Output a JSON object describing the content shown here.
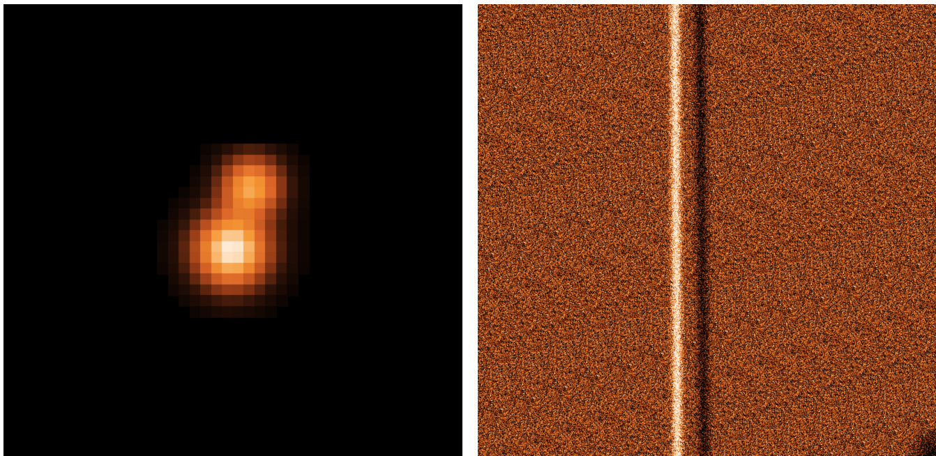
{
  "figure": {
    "panels": [
      {
        "kind": "point-source-image",
        "colormap": "heat",
        "background_color": "#000000",
        "sources": [
          {
            "label_visible": false,
            "relative_brightness": 1.0,
            "core_color": "#f6e2cf"
          },
          {
            "label_visible": false,
            "relative_brightness": 0.55,
            "core_color": "#e4662a"
          }
        ],
        "pixelated": true
      },
      {
        "kind": "spectrum-trace-image",
        "colormap": "heat",
        "background_color": "#8a4e22",
        "noise": "dense",
        "trace": {
          "orientation": "vertical",
          "bright_color": "#fff3e6",
          "dark_shadow_color": "#1a0c05"
        }
      }
    ]
  }
}
